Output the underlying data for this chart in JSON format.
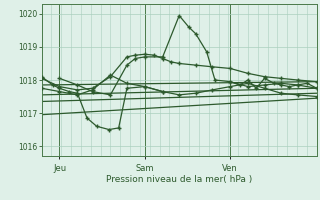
{
  "background_color": "#dff0e8",
  "grid_color": "#aacfbe",
  "line_color": "#2d5a2d",
  "title": "Pression niveau de la mer( hPa )",
  "ylim": [
    1015.7,
    1020.3
  ],
  "yticks": [
    1016,
    1017,
    1018,
    1019,
    1020
  ],
  "day_labels": [
    "Jeu",
    "Sam",
    "Ven"
  ],
  "day_positions": [
    0.065,
    0.375,
    0.685
  ],
  "vline_positions": [
    0.065,
    0.375,
    0.685
  ],
  "series": [
    {
      "x": [
        0.0,
        1.0
      ],
      "y": [
        1017.85,
        1017.95
      ],
      "marker": null,
      "lw": 0.9
    },
    {
      "x": [
        0.0,
        1.0
      ],
      "y": [
        1017.55,
        1017.75
      ],
      "marker": null,
      "lw": 0.9
    },
    {
      "x": [
        0.0,
        1.0
      ],
      "y": [
        1017.35,
        1017.6
      ],
      "marker": null,
      "lw": 0.9
    },
    {
      "x": [
        0.0,
        1.0
      ],
      "y": [
        1016.95,
        1017.45
      ],
      "marker": null,
      "lw": 0.9
    },
    {
      "x": [
        0.0,
        0.065,
        0.13,
        0.185,
        0.25,
        0.31,
        0.34,
        0.375,
        0.41,
        0.44,
        0.47,
        0.5,
        0.56,
        0.62,
        0.685,
        0.75,
        0.81,
        0.87,
        0.93,
        1.0
      ],
      "y": [
        1018.05,
        1017.8,
        1017.7,
        1017.75,
        1018.1,
        1018.7,
        1018.75,
        1018.78,
        1018.75,
        1018.65,
        1018.55,
        1018.5,
        1018.45,
        1018.4,
        1018.35,
        1018.2,
        1018.1,
        1018.05,
        1018.0,
        1017.95
      ],
      "marker": "+",
      "ms": 3.5,
      "lw": 0.9
    },
    {
      "x": [
        0.0,
        0.065,
        0.13,
        0.185,
        0.25,
        0.31,
        0.375,
        0.44,
        0.5,
        0.56,
        0.62,
        0.685,
        0.75,
        0.81,
        0.87,
        0.93,
        1.0
      ],
      "y": [
        1017.75,
        1017.65,
        1017.55,
        1017.7,
        1018.15,
        1017.9,
        1017.8,
        1017.65,
        1017.55,
        1017.6,
        1017.7,
        1017.8,
        1017.9,
        1017.75,
        1017.6,
        1017.55,
        1017.5
      ],
      "marker": "+",
      "ms": 3.5,
      "lw": 0.9
    },
    {
      "x": [
        0.065,
        0.13,
        0.185,
        0.25,
        0.31,
        0.34,
        0.375,
        0.44,
        0.5,
        0.535,
        0.56,
        0.6,
        0.63,
        0.685,
        0.75,
        0.81,
        0.87,
        0.93,
        1.0
      ],
      "y": [
        1018.05,
        1017.85,
        1017.65,
        1017.55,
        1018.45,
        1018.65,
        1018.7,
        1018.7,
        1019.95,
        1019.6,
        1019.4,
        1018.85,
        1018.0,
        1017.95,
        1017.8,
        1017.85,
        1017.9,
        1017.85,
        1017.75
      ],
      "marker": "+",
      "ms": 3.5,
      "lw": 0.9
    },
    {
      "x": [
        0.0,
        0.04,
        0.065,
        0.1,
        0.13,
        0.165,
        0.2,
        0.245,
        0.28,
        0.31,
        0.375,
        0.44
      ],
      "y": [
        1018.1,
        1017.85,
        1017.75,
        1017.65,
        1017.6,
        1016.85,
        1016.6,
        1016.5,
        1016.55,
        1017.75,
        1017.8,
        1017.65
      ],
      "marker": "+",
      "ms": 3.5,
      "lw": 0.9
    },
    {
      "x": [
        0.685,
        0.72,
        0.75,
        0.78,
        0.81,
        0.845,
        0.87,
        0.9,
        0.93,
        0.965,
        1.0
      ],
      "y": [
        1017.95,
        1017.85,
        1018.0,
        1017.75,
        1018.05,
        1017.9,
        1017.85,
        1017.8,
        1017.85,
        1017.9,
        1017.75
      ],
      "marker": "+",
      "ms": 3.5,
      "lw": 0.9
    }
  ]
}
